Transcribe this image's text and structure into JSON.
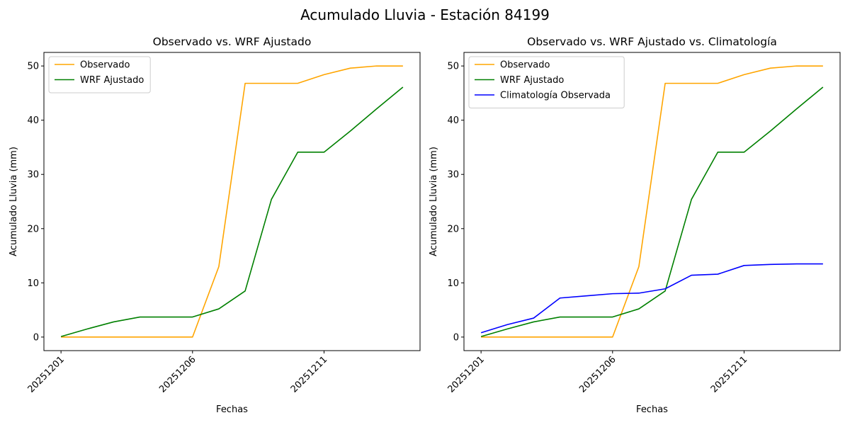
{
  "figure": {
    "title": "Acumulado Lluvia - Estación 84199"
  },
  "chart_data": [
    {
      "type": "line",
      "title": "Observado vs. WRF Ajustado",
      "xlabel": "Fechas",
      "ylabel": "Acumulado Lluvia (mm)",
      "x": [
        "20251201",
        "20251202",
        "20251203",
        "20251204",
        "20251205",
        "20251206",
        "20251207",
        "20251208",
        "20251209",
        "20251210",
        "20251211",
        "20251212",
        "20251213",
        "20251214"
      ],
      "xticks": [
        "20251201",
        "20251206",
        "20251211"
      ],
      "xtick_index": [
        0,
        5,
        10
      ],
      "yticks": [
        0,
        10,
        20,
        30,
        40,
        50
      ],
      "ylim": [
        -2.5,
        52.5
      ],
      "xlim": [
        -0.65,
        13.65
      ],
      "legend": "upper-left",
      "grid": false,
      "series": [
        {
          "name": "Observado",
          "color": "#FFA500",
          "values": [
            0,
            0,
            0,
            0,
            0,
            0,
            13.0,
            46.8,
            46.8,
            46.8,
            48.4,
            49.6,
            50.0,
            50.0
          ]
        },
        {
          "name": "WRF Ajustado",
          "color": "#008000",
          "values": [
            0.1,
            1.5,
            2.8,
            3.7,
            3.7,
            3.7,
            5.2,
            8.5,
            25.4,
            34.1,
            34.1,
            38.0,
            42.1,
            46.1
          ]
        }
      ]
    },
    {
      "type": "line",
      "title": "Observado vs. WRF Ajustado vs. Climatología",
      "xlabel": "Fechas",
      "ylabel": "Acumulado Lluvia (mm)",
      "x": [
        "20251201",
        "20251202",
        "20251203",
        "20251204",
        "20251205",
        "20251206",
        "20251207",
        "20251208",
        "20251209",
        "20251210",
        "20251211",
        "20251212",
        "20251213",
        "20251214"
      ],
      "xticks": [
        "20251201",
        "20251206",
        "20251211"
      ],
      "xtick_index": [
        0,
        5,
        10
      ],
      "yticks": [
        0,
        10,
        20,
        30,
        40,
        50
      ],
      "ylim": [
        -2.5,
        52.5
      ],
      "xlim": [
        -0.65,
        13.65
      ],
      "legend": "upper-left",
      "grid": false,
      "series": [
        {
          "name": "Observado",
          "color": "#FFA500",
          "values": [
            0,
            0,
            0,
            0,
            0,
            0,
            13.0,
            46.8,
            46.8,
            46.8,
            48.4,
            49.6,
            50.0,
            50.0
          ]
        },
        {
          "name": "WRF Ajustado",
          "color": "#008000",
          "values": [
            0.1,
            1.5,
            2.8,
            3.7,
            3.7,
            3.7,
            5.2,
            8.5,
            25.4,
            34.1,
            34.1,
            38.0,
            42.1,
            46.1
          ]
        },
        {
          "name": "Climatología Observada",
          "color": "#0000FF",
          "values": [
            0.8,
            2.3,
            3.5,
            7.2,
            7.6,
            8.0,
            8.1,
            8.9,
            11.4,
            11.6,
            13.2,
            13.4,
            13.5,
            13.5
          ]
        }
      ]
    }
  ]
}
